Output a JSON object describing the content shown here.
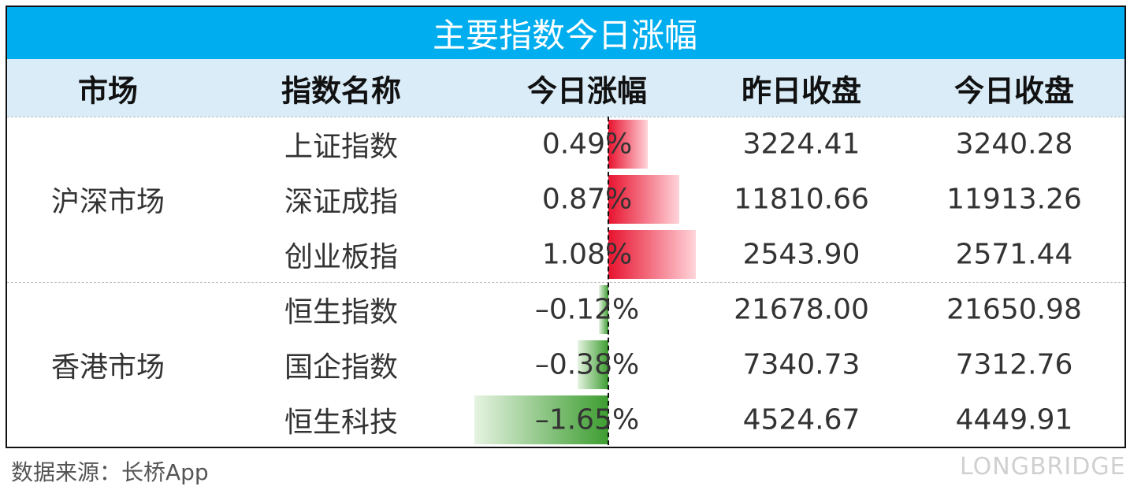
{
  "title": "主要指数今日涨幅",
  "table": {
    "columns": [
      "市场",
      "指数名称",
      "今日涨幅",
      "昨日收盘",
      "今日收盘"
    ],
    "groups": [
      {
        "market": "沪深市场",
        "rows": [
          {
            "name": "上证指数",
            "change": 0.49,
            "change_label": "0.49%",
            "prev": "3224.41",
            "close": "3240.28"
          },
          {
            "name": "深证成指",
            "change": 0.87,
            "change_label": "0.87%",
            "prev": "11810.66",
            "close": "11913.26"
          },
          {
            "name": "创业板指",
            "change": 1.08,
            "change_label": "1.08%",
            "prev": "2543.90",
            "close": "2571.44"
          }
        ]
      },
      {
        "market": "香港市场",
        "rows": [
          {
            "name": "恒生指数",
            "change": -0.12,
            "change_label": "–0.12%",
            "prev": "21678.00",
            "close": "21650.98"
          },
          {
            "name": "国企指数",
            "change": -0.38,
            "change_label": "–0.38%",
            "prev": "7340.73",
            "close": "7312.76"
          },
          {
            "name": "恒生科技",
            "change": -1.65,
            "change_label": "–1.65%",
            "prev": "4524.67",
            "close": "4449.91"
          }
        ]
      }
    ]
  },
  "footer": {
    "source": "数据来源：长桥App",
    "logo": "LONGBRIDGE"
  }
}
